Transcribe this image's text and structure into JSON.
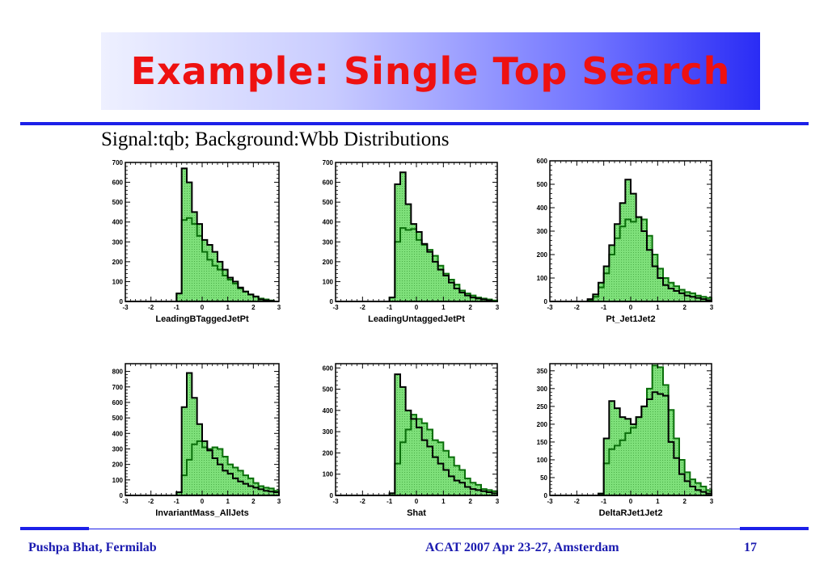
{
  "slide": {
    "title": "Example: Single Top Search",
    "subtitle": "Signal:tqb; Background:Wbb Distributions",
    "footer_left": "Pushpa Bhat, Fermilab",
    "footer_center": "ACAT 2007 Apr 23-27, Amsterdam",
    "page_number": "17"
  },
  "colors": {
    "title": "#ee1111",
    "rule": "#1c20e8",
    "footer": "#1b1bb0",
    "green_fill": "#7ee07a",
    "green_edge": "#0a6e0a",
    "pink_fill": "#f4c4c4",
    "black_edge": "#000000"
  },
  "chart_data": [
    {
      "type": "bar",
      "xlabel": "LeadingBTaggedJetPt",
      "xlim": [
        -3,
        3
      ],
      "ylim": [
        0,
        700
      ],
      "xticks": [
        -3,
        -2,
        -1,
        0,
        1,
        2,
        3
      ],
      "yticks": [
        0,
        100,
        200,
        300,
        400,
        500,
        600,
        700
      ],
      "bins": 30,
      "series": [
        {
          "values": [
            0,
            0,
            0,
            0,
            0,
            0,
            0,
            0,
            0,
            0,
            40,
            670,
            600,
            450,
            390,
            310,
            285,
            250,
            200,
            160,
            120,
            100,
            70,
            50,
            35,
            25,
            10,
            5,
            3,
            0
          ]
        },
        {
          "values": [
            0,
            0,
            0,
            0,
            0,
            0,
            0,
            0,
            0,
            0,
            40,
            410,
            420,
            390,
            330,
            250,
            210,
            180,
            160,
            130,
            110,
            90,
            65,
            50,
            35,
            25,
            15,
            10,
            5,
            0
          ]
        }
      ]
    },
    {
      "type": "bar",
      "xlabel": "LeadingUntaggedJetPt",
      "xlim": [
        -3,
        3
      ],
      "ylim": [
        0,
        700
      ],
      "xticks": [
        -3,
        -2,
        -1,
        0,
        1,
        2,
        3
      ],
      "yticks": [
        0,
        100,
        200,
        300,
        400,
        500,
        600,
        700
      ],
      "bins": 30,
      "series": [
        {
          "values": [
            0,
            0,
            0,
            0,
            0,
            0,
            0,
            0,
            0,
            0,
            20,
            590,
            650,
            490,
            390,
            350,
            290,
            250,
            200,
            160,
            130,
            95,
            65,
            45,
            30,
            20,
            15,
            10,
            5,
            0
          ]
        },
        {
          "values": [
            0,
            0,
            0,
            0,
            0,
            0,
            0,
            0,
            0,
            0,
            20,
            300,
            370,
            360,
            365,
            310,
            285,
            260,
            230,
            180,
            140,
            110,
            85,
            55,
            40,
            30,
            20,
            15,
            10,
            5
          ]
        }
      ]
    },
    {
      "type": "bar",
      "xlabel": "Pt_Jet1Jet2",
      "xlim": [
        -3,
        3
      ],
      "ylim": [
        0,
        600
      ],
      "xticks": [
        -3,
        -2,
        -1,
        0,
        1,
        2,
        3
      ],
      "yticks": [
        0,
        100,
        200,
        300,
        400,
        500,
        600
      ],
      "bins": 30,
      "series": [
        {
          "values": [
            0,
            0,
            0,
            0,
            0,
            0,
            0,
            10,
            30,
            80,
            150,
            240,
            330,
            420,
            520,
            460,
            360,
            300,
            220,
            150,
            100,
            70,
            55,
            45,
            35,
            25,
            20,
            15,
            10,
            5
          ]
        },
        {
          "values": [
            0,
            0,
            0,
            0,
            0,
            0,
            0,
            5,
            20,
            60,
            120,
            200,
            270,
            320,
            350,
            340,
            360,
            350,
            280,
            200,
            140,
            100,
            80,
            65,
            50,
            40,
            35,
            25,
            20,
            15
          ]
        }
      ]
    },
    {
      "type": "bar",
      "xlabel": "InvariantMass_AllJets",
      "xlim": [
        -3,
        3
      ],
      "ylim": [
        0,
        850
      ],
      "xticks": [
        -3,
        -2,
        -1,
        0,
        1,
        2,
        3
      ],
      "yticks": [
        0,
        100,
        200,
        300,
        400,
        500,
        600,
        700,
        800
      ],
      "bins": 30,
      "series": [
        {
          "values": [
            0,
            0,
            0,
            0,
            0,
            0,
            0,
            0,
            0,
            0,
            20,
            570,
            790,
            630,
            460,
            350,
            290,
            240,
            200,
            160,
            140,
            110,
            90,
            75,
            60,
            50,
            40,
            30,
            25,
            20
          ]
        },
        {
          "values": [
            0,
            0,
            0,
            0,
            0,
            0,
            0,
            0,
            0,
            0,
            20,
            130,
            230,
            330,
            350,
            310,
            300,
            310,
            300,
            250,
            200,
            180,
            160,
            130,
            110,
            80,
            60,
            50,
            45,
            30
          ]
        }
      ]
    },
    {
      "type": "bar",
      "xlabel": "Shat",
      "xlim": [
        -3,
        3
      ],
      "ylim": [
        0,
        620
      ],
      "xticks": [
        -3,
        -2,
        -1,
        0,
        1,
        2,
        3
      ],
      "yticks": [
        0,
        100,
        200,
        300,
        400,
        500,
        600
      ],
      "bins": 30,
      "series": [
        {
          "values": [
            0,
            0,
            0,
            0,
            0,
            0,
            0,
            0,
            0,
            0,
            10,
            570,
            510,
            400,
            360,
            320,
            260,
            230,
            180,
            150,
            120,
            90,
            70,
            60,
            40,
            30,
            25,
            20,
            15,
            10
          ]
        },
        {
          "values": [
            0,
            0,
            0,
            0,
            0,
            0,
            0,
            0,
            0,
            0,
            10,
            150,
            250,
            310,
            380,
            360,
            340,
            310,
            260,
            250,
            210,
            180,
            140,
            120,
            80,
            60,
            50,
            30,
            25,
            20
          ]
        }
      ]
    },
    {
      "type": "bar",
      "xlabel": "DeltaRJet1Jet2",
      "xlim": [
        -3,
        3
      ],
      "ylim": [
        0,
        370
      ],
      "xticks": [
        -3,
        -2,
        -1,
        0,
        1,
        2,
        3
      ],
      "yticks": [
        0,
        50,
        100,
        150,
        200,
        250,
        300,
        350
      ],
      "bins": 30,
      "series": [
        {
          "values": [
            0,
            0,
            0,
            0,
            0,
            0,
            0,
            0,
            0,
            5,
            160,
            265,
            245,
            220,
            215,
            200,
            220,
            250,
            270,
            290,
            285,
            280,
            150,
            105,
            60,
            40,
            25,
            15,
            10,
            5
          ]
        },
        {
          "values": [
            0,
            0,
            0,
            0,
            0,
            0,
            0,
            0,
            0,
            5,
            90,
            130,
            140,
            155,
            175,
            190,
            220,
            250,
            300,
            365,
            360,
            310,
            240,
            160,
            100,
            65,
            45,
            35,
            25,
            15
          ]
        }
      ]
    }
  ]
}
